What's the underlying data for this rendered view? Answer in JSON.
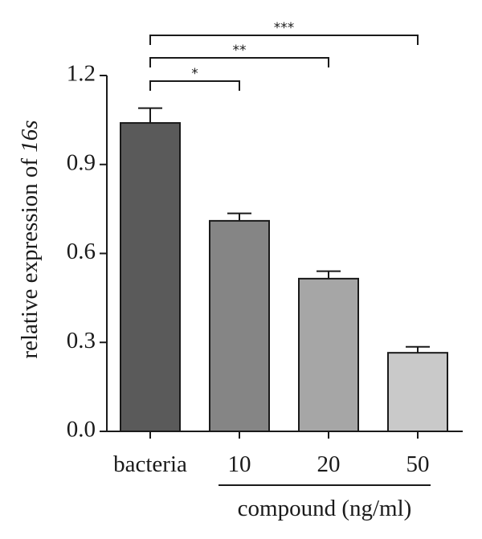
{
  "chart_data": {
    "type": "bar",
    "categories": [
      "bacteria",
      "10",
      "20",
      "50"
    ],
    "values": [
      1.04,
      0.71,
      0.515,
      0.265
    ],
    "errors": [
      0.05,
      0.025,
      0.025,
      0.02
    ],
    "bar_colors": [
      "#5a5a5a",
      "#858585",
      "#a6a6a6",
      "#c9c9c9"
    ],
    "ylabel_prefix": "relative expression of ",
    "ylabel_italic": "16s",
    "xgroup_label": "compound (ng/ml)",
    "ylim": [
      0.0,
      1.2
    ],
    "yticks": [
      "0.0",
      "0.3",
      "0.6",
      "0.9",
      "1.2"
    ],
    "grid": false,
    "significance": [
      {
        "from": "bacteria",
        "to": "10",
        "label": "*"
      },
      {
        "from": "bacteria",
        "to": "20",
        "label": "**"
      },
      {
        "from": "bacteria",
        "to": "50",
        "label": "***"
      }
    ]
  }
}
